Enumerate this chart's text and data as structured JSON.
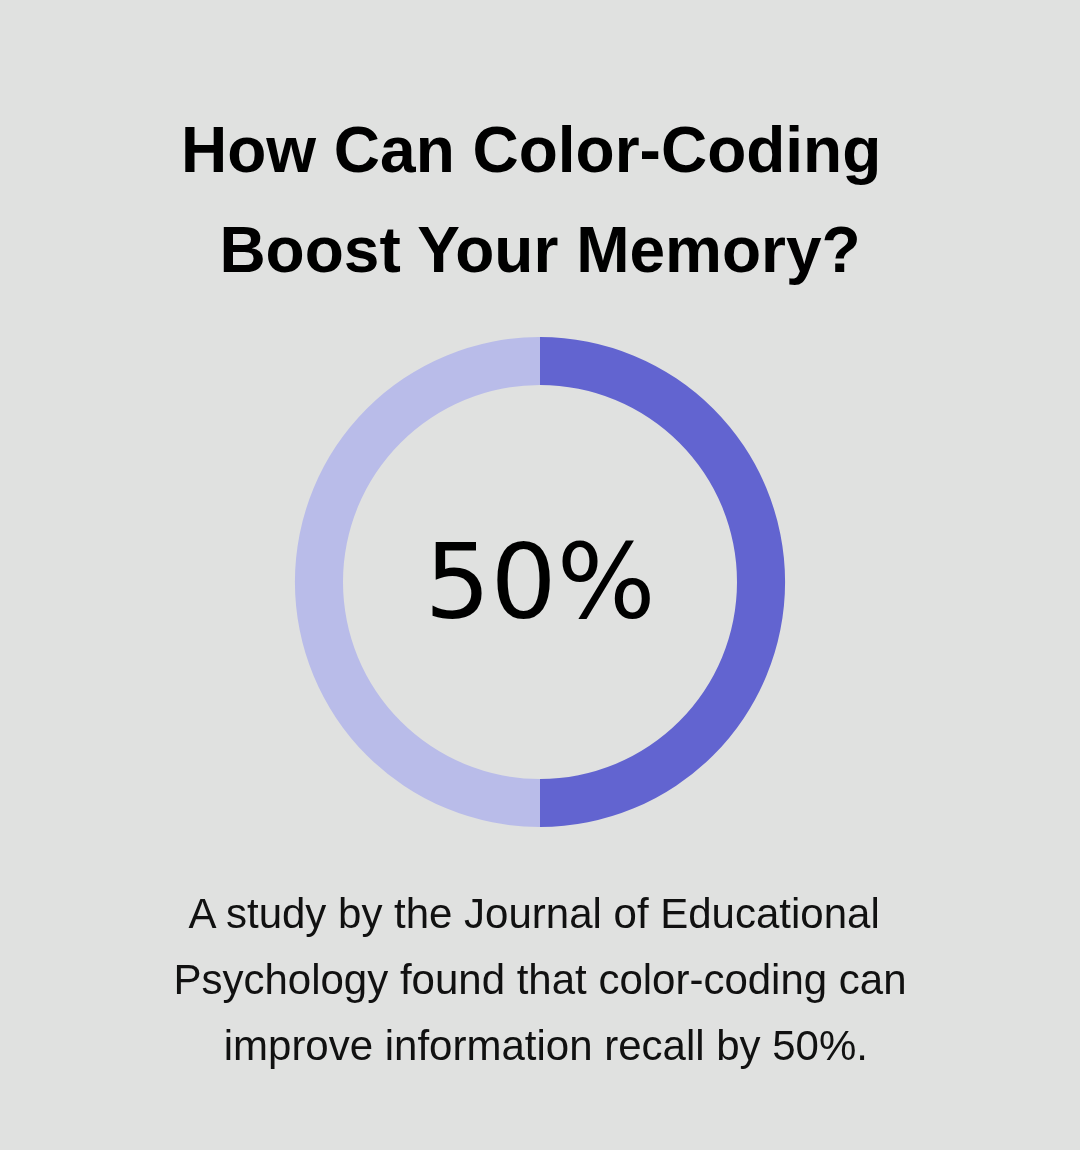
{
  "chart_data": {
    "type": "donut",
    "title": "How Can Color-Coding Boost Your Memory?",
    "categories": [
      null,
      null
    ],
    "values": [
      50,
      50
    ],
    "colors": [
      "#6264d0",
      "#b9bce9"
    ],
    "value_labels": [
      "50%",
      null
    ],
    "annotations": [
      "A study by the Journal of Educational Psychology found that color-coding can improve information recall by 50%."
    ]
  }
}
